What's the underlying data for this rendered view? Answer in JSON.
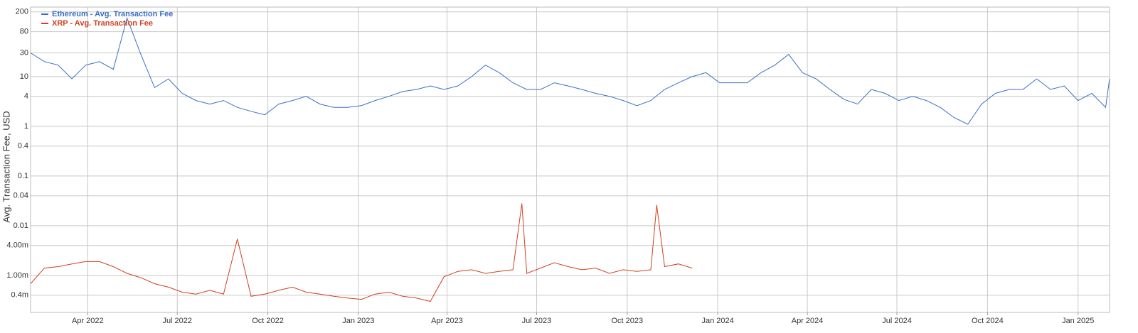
{
  "chart_data": {
    "type": "line",
    "y_label": "Avg. Transaction Fee, USD",
    "log_scale": true,
    "grid": true,
    "legend": "top-left",
    "xlim": [
      "2022-02-02",
      "2025-02-02"
    ],
    "xticks": [
      {
        "value": "2022-04-01",
        "label": "Apr 2022"
      },
      {
        "value": "2022-07-01",
        "label": "Jul 2022"
      },
      {
        "value": "2022-10-01",
        "label": "Oct 2022"
      },
      {
        "value": "2023-01-01",
        "label": "Jan 2023"
      },
      {
        "value": "2023-04-01",
        "label": "Apr 2023"
      },
      {
        "value": "2023-07-01",
        "label": "Jul 2023"
      },
      {
        "value": "2023-10-01",
        "label": "Oct 2023"
      },
      {
        "value": "2024-01-01",
        "label": "Jan 2024"
      },
      {
        "value": "2024-04-01",
        "label": "Apr 2024"
      },
      {
        "value": "2024-07-01",
        "label": "Jul 2024"
      },
      {
        "value": "2024-10-01",
        "label": "Oct 2024"
      },
      {
        "value": "2025-01-01",
        "label": "Jan 2025"
      }
    ],
    "ylim": [
      0.00018,
      250
    ],
    "yticks": [
      200,
      80,
      30,
      10,
      4,
      1,
      0.4,
      0.1,
      0.04,
      0.01,
      {
        "value": 0.004,
        "label": "4.00m"
      },
      {
        "value": 0.001,
        "label": "1.00m"
      },
      {
        "value": 0.0004,
        "label": "0.4m"
      }
    ],
    "series": [
      {
        "name": "Ethereum - Avg. Transaction Fee",
        "color": "#3a6fc4",
        "x": [
          "2022-02-02",
          "2022-02-16",
          "2022-03-02",
          "2022-03-16",
          "2022-03-30",
          "2022-04-13",
          "2022-04-27",
          "2022-05-11",
          "2022-05-25",
          "2022-06-08",
          "2022-06-22",
          "2022-07-06",
          "2022-07-20",
          "2022-08-03",
          "2022-08-17",
          "2022-08-31",
          "2022-09-14",
          "2022-09-28",
          "2022-10-12",
          "2022-10-26",
          "2022-11-09",
          "2022-11-23",
          "2022-12-07",
          "2022-12-21",
          "2023-01-04",
          "2023-01-18",
          "2023-02-01",
          "2023-02-15",
          "2023-03-01",
          "2023-03-15",
          "2023-03-29",
          "2023-04-12",
          "2023-04-26",
          "2023-05-10",
          "2023-05-24",
          "2023-06-07",
          "2023-06-21",
          "2023-07-05",
          "2023-07-19",
          "2023-08-02",
          "2023-08-16",
          "2023-08-30",
          "2023-09-13",
          "2023-09-27",
          "2023-10-11",
          "2023-10-25",
          "2023-11-08",
          "2023-11-22",
          "2023-12-06",
          "2023-12-20",
          "2024-01-03",
          "2024-01-17",
          "2024-01-31",
          "2024-02-14",
          "2024-02-28",
          "2024-03-13",
          "2024-03-27",
          "2024-04-10",
          "2024-04-24",
          "2024-05-08",
          "2024-05-22",
          "2024-06-05",
          "2024-06-19",
          "2024-07-03",
          "2024-07-17",
          "2024-07-31",
          "2024-08-14",
          "2024-08-28",
          "2024-09-11",
          "2024-09-25",
          "2024-10-09",
          "2024-10-23",
          "2024-11-06",
          "2024-11-20",
          "2024-12-04",
          "2024-12-18",
          "2025-01-01",
          "2025-01-15",
          "2025-01-29",
          "2025-02-02"
        ],
        "values": [
          30,
          20,
          17,
          9,
          17,
          20,
          14,
          150,
          28,
          6,
          9,
          4.6,
          3.3,
          2.8,
          3.3,
          2.4,
          2,
          1.7,
          2.8,
          3.3,
          4,
          2.8,
          2.4,
          2.4,
          2.6,
          3.3,
          4,
          5,
          5.5,
          6.5,
          5.5,
          6.5,
          10,
          17,
          12,
          7.5,
          5.5,
          5.5,
          7.5,
          6.5,
          5.5,
          4.6,
          4,
          3.3,
          2.6,
          3.3,
          5.5,
          7.5,
          10,
          12,
          7.5,
          7.5,
          7.5,
          12,
          17,
          28,
          12,
          9,
          5.5,
          3.5,
          2.8,
          5.5,
          4.6,
          3.3,
          4,
          3.3,
          2.4,
          1.5,
          1.1,
          2.8,
          4.6,
          5.5,
          5.5,
          9,
          5.5,
          6.5,
          3.3,
          4.6,
          2.4,
          9
        ]
      },
      {
        "name": "XRP - Avg. Transaction Fee",
        "color": "#d0401f",
        "x": [
          "2022-02-02",
          "2022-02-16",
          "2022-03-02",
          "2022-03-16",
          "2022-03-30",
          "2022-04-13",
          "2022-04-27",
          "2022-05-11",
          "2022-05-25",
          "2022-06-08",
          "2022-06-22",
          "2022-07-06",
          "2022-07-20",
          "2022-08-03",
          "2022-08-17",
          "2022-08-31",
          "2022-09-14",
          "2022-09-28",
          "2022-10-12",
          "2022-10-26",
          "2022-11-09",
          "2022-11-23",
          "2022-12-07",
          "2022-12-21",
          "2023-01-04",
          "2023-01-18",
          "2023-02-01",
          "2023-02-15",
          "2023-03-01",
          "2023-03-15",
          "2023-03-29",
          "2023-04-12",
          "2023-04-26",
          "2023-05-10",
          "2023-05-24",
          "2023-06-07",
          "2023-06-16",
          "2023-06-21",
          "2023-07-05",
          "2023-07-19",
          "2023-08-02",
          "2023-08-16",
          "2023-08-30",
          "2023-09-13",
          "2023-09-27",
          "2023-10-11",
          "2023-10-25",
          "2023-10-31",
          "2023-11-08",
          "2023-11-22",
          "2023-12-06"
        ],
        "values": [
          0.00068,
          0.0014,
          0.0015,
          0.0017,
          0.0019,
          0.0019,
          0.0015,
          0.0011,
          0.0009,
          0.00068,
          0.00058,
          0.00046,
          0.00042,
          0.0005,
          0.00042,
          0.0054,
          0.00038,
          0.00042,
          0.0005,
          0.00058,
          0.00046,
          0.00042,
          0.00038,
          0.00035,
          0.00033,
          0.00042,
          0.00046,
          0.00038,
          0.00035,
          0.0003,
          0.00094,
          0.0012,
          0.0013,
          0.0011,
          0.0012,
          0.0013,
          0.028,
          0.0011,
          0.0014,
          0.0018,
          0.0015,
          0.0013,
          0.0014,
          0.0011,
          0.0013,
          0.0012,
          0.0013,
          0.026,
          0.0015,
          0.0017,
          0.0014
        ]
      }
    ]
  }
}
